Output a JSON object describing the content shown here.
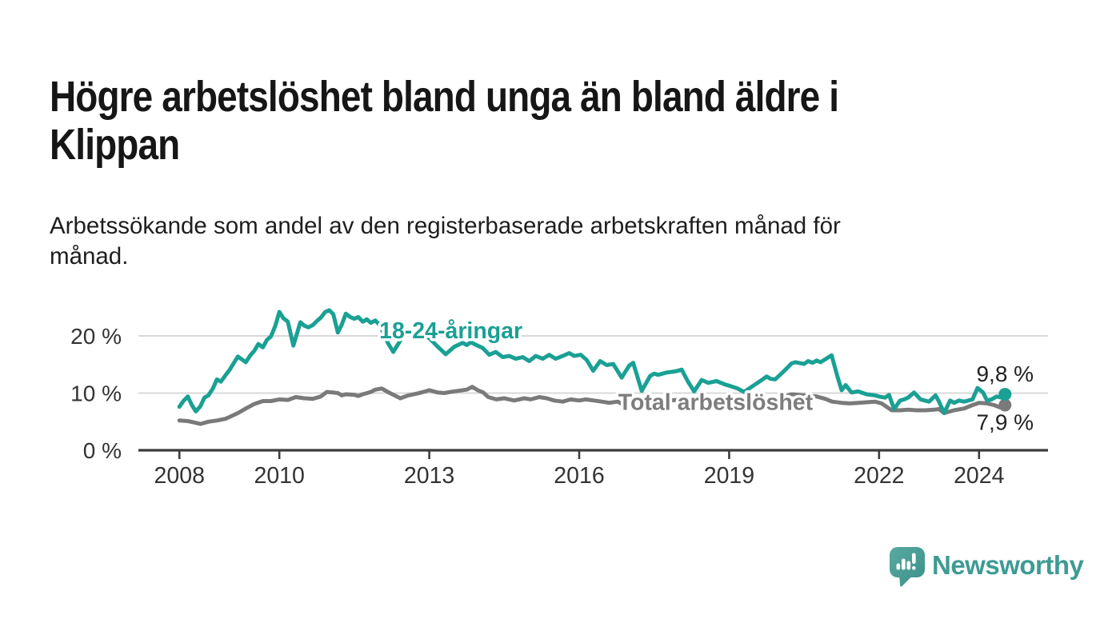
{
  "header": {
    "title": "Högre arbetslöshet bland unga än bland äldre i\nKlippan",
    "subtitle": "Arbetssökande som andel av den registerbaserade arbetskraften månad för\nmånad."
  },
  "chart_data": {
    "type": "line",
    "unit": "%",
    "xlim": [
      2007.18,
      2025.38
    ],
    "ylim": [
      0,
      29.8
    ],
    "grid": "horizontal",
    "legend_position": "inline-labels",
    "colors": {
      "youth_line": "#1aa094",
      "total_line": "#7a7a7a",
      "total_label": "#7d7d7d",
      "axis": "#3c3c3c",
      "gridline": "#d9d9d9",
      "tick_text": "#333333",
      "value_text": "#222222"
    },
    "y_ticks": [
      {
        "v": 0,
        "label": "0 %"
      },
      {
        "v": 10,
        "label": "10 %"
      },
      {
        "v": 20,
        "label": "20 %"
      }
    ],
    "x_ticks": [
      {
        "v": 2008,
        "label": "2008"
      },
      {
        "v": 2010,
        "label": "2010"
      },
      {
        "v": 2013,
        "label": "2013"
      },
      {
        "v": 2016,
        "label": "2016"
      },
      {
        "v": 2019,
        "label": "2019"
      },
      {
        "v": 2022,
        "label": "2022"
      },
      {
        "v": 2024,
        "label": "2024"
      }
    ],
    "series": [
      {
        "name": "Total arbetslöshet",
        "slug": "total",
        "color": "#7a7a7a",
        "end_dot": true,
        "end_value_label": {
          "text": "7,9 %",
          "side": "below"
        },
        "inline_label": {
          "text": "Total arbetslöshet",
          "x": 2016.78,
          "y": 7.05,
          "color": "#7d7d7d"
        },
        "points": [
          [
            2008.0,
            5.2
          ],
          [
            2008.17,
            5.1
          ],
          [
            2008.33,
            4.8
          ],
          [
            2008.42,
            4.6
          ],
          [
            2008.58,
            5.0
          ],
          [
            2008.75,
            5.2
          ],
          [
            2008.92,
            5.5
          ],
          [
            2009.0,
            5.8
          ],
          [
            2009.17,
            6.5
          ],
          [
            2009.33,
            7.3
          ],
          [
            2009.5,
            8.1
          ],
          [
            2009.67,
            8.6
          ],
          [
            2009.83,
            8.6
          ],
          [
            2010.0,
            8.9
          ],
          [
            2010.17,
            8.8
          ],
          [
            2010.33,
            9.3
          ],
          [
            2010.5,
            9.1
          ],
          [
            2010.67,
            9.0
          ],
          [
            2010.83,
            9.4
          ],
          [
            2010.95,
            10.2
          ],
          [
            2011.08,
            10.1
          ],
          [
            2011.17,
            10.0
          ],
          [
            2011.25,
            9.6
          ],
          [
            2011.33,
            9.8
          ],
          [
            2011.5,
            9.7
          ],
          [
            2011.58,
            9.5
          ],
          [
            2011.67,
            9.8
          ],
          [
            2011.83,
            10.2
          ],
          [
            2011.92,
            10.6
          ],
          [
            2012.05,
            10.8
          ],
          [
            2012.17,
            10.2
          ],
          [
            2012.33,
            9.5
          ],
          [
            2012.42,
            9.1
          ],
          [
            2012.58,
            9.6
          ],
          [
            2012.75,
            9.9
          ],
          [
            2012.92,
            10.3
          ],
          [
            2013.0,
            10.5
          ],
          [
            2013.17,
            10.1
          ],
          [
            2013.3,
            10.0
          ],
          [
            2013.42,
            10.2
          ],
          [
            2013.58,
            10.4
          ],
          [
            2013.75,
            10.6
          ],
          [
            2013.86,
            11.1
          ],
          [
            2013.97,
            10.5
          ],
          [
            2014.08,
            10.1
          ],
          [
            2014.18,
            9.3
          ],
          [
            2014.34,
            8.9
          ],
          [
            2014.5,
            9.1
          ],
          [
            2014.7,
            8.7
          ],
          [
            2014.9,
            9.1
          ],
          [
            2015.03,
            8.9
          ],
          [
            2015.2,
            9.3
          ],
          [
            2015.35,
            9.1
          ],
          [
            2015.5,
            8.7
          ],
          [
            2015.67,
            8.5
          ],
          [
            2015.83,
            8.9
          ],
          [
            2016.0,
            8.7
          ],
          [
            2016.13,
            8.9
          ],
          [
            2016.3,
            8.7
          ],
          [
            2016.45,
            8.5
          ],
          [
            2016.6,
            8.3
          ],
          [
            2016.77,
            8.5
          ],
          [
            2016.92,
            7.8
          ],
          [
            2017.08,
            8.2
          ],
          [
            2017.25,
            8.4
          ],
          [
            2017.42,
            8.6
          ],
          [
            2017.58,
            8.8
          ],
          [
            2017.75,
            8.7
          ],
          [
            2017.97,
            8.8
          ],
          [
            2018.17,
            8.6
          ],
          [
            2018.33,
            8.4
          ],
          [
            2018.5,
            8.5
          ],
          [
            2018.67,
            8.7
          ],
          [
            2018.83,
            8.6
          ],
          [
            2019.0,
            8.8
          ],
          [
            2019.17,
            8.3
          ],
          [
            2019.3,
            7.8
          ],
          [
            2019.5,
            8.4
          ],
          [
            2019.67,
            8.7
          ],
          [
            2019.83,
            8.9
          ],
          [
            2020.0,
            9.1
          ],
          [
            2020.25,
            9.8
          ],
          [
            2020.5,
            9.6
          ],
          [
            2020.75,
            9.4
          ],
          [
            2020.92,
            9.0
          ],
          [
            2021.06,
            8.5
          ],
          [
            2021.25,
            8.3
          ],
          [
            2021.42,
            8.2
          ],
          [
            2021.58,
            8.3
          ],
          [
            2021.75,
            8.4
          ],
          [
            2021.92,
            8.5
          ],
          [
            2022.05,
            8.2
          ],
          [
            2022.25,
            7.0
          ],
          [
            2022.42,
            7.0
          ],
          [
            2022.58,
            7.1
          ],
          [
            2022.75,
            7.0
          ],
          [
            2022.92,
            7.0
          ],
          [
            2023.1,
            7.1
          ],
          [
            2023.2,
            7.2
          ],
          [
            2023.3,
            6.5
          ],
          [
            2023.5,
            7.0
          ],
          [
            2023.7,
            7.3
          ],
          [
            2023.87,
            7.9
          ],
          [
            2024.0,
            8.3
          ],
          [
            2024.16,
            8.2
          ],
          [
            2024.3,
            7.9
          ],
          [
            2024.42,
            7.5
          ],
          [
            2024.52,
            7.9
          ]
        ]
      },
      {
        "name": "18-24-åringar",
        "slug": "youth",
        "color": "#1aa094",
        "end_dot": true,
        "end_value_label": {
          "text": "9,8 %",
          "side": "above"
        },
        "inline_label": {
          "text": "18-24-åringar",
          "x": 2012.0,
          "y": 19.6,
          "color": "#1aa094"
        },
        "points": [
          [
            2008.0,
            7.6
          ],
          [
            2008.08,
            8.6
          ],
          [
            2008.17,
            9.4
          ],
          [
            2008.25,
            7.9
          ],
          [
            2008.33,
            6.8
          ],
          [
            2008.42,
            7.7
          ],
          [
            2008.5,
            9.2
          ],
          [
            2008.58,
            9.6
          ],
          [
            2008.67,
            10.8
          ],
          [
            2008.75,
            12.4
          ],
          [
            2008.83,
            12.0
          ],
          [
            2008.92,
            13.1
          ],
          [
            2009.0,
            14.0
          ],
          [
            2009.17,
            16.4
          ],
          [
            2009.25,
            15.9
          ],
          [
            2009.33,
            15.4
          ],
          [
            2009.42,
            16.6
          ],
          [
            2009.5,
            17.4
          ],
          [
            2009.58,
            18.6
          ],
          [
            2009.67,
            18.0
          ],
          [
            2009.75,
            19.3
          ],
          [
            2009.83,
            19.9
          ],
          [
            2009.92,
            21.8
          ],
          [
            2010.0,
            24.2
          ],
          [
            2010.08,
            23.1
          ],
          [
            2010.17,
            22.5
          ],
          [
            2010.28,
            18.3
          ],
          [
            2010.42,
            22.4
          ],
          [
            2010.5,
            21.8
          ],
          [
            2010.58,
            21.5
          ],
          [
            2010.67,
            21.9
          ],
          [
            2010.75,
            22.6
          ],
          [
            2010.83,
            23.2
          ],
          [
            2010.92,
            24.2
          ],
          [
            2011.0,
            24.5
          ],
          [
            2011.08,
            23.8
          ],
          [
            2011.17,
            20.6
          ],
          [
            2011.25,
            22.0
          ],
          [
            2011.33,
            23.9
          ],
          [
            2011.42,
            23.3
          ],
          [
            2011.5,
            23.0
          ],
          [
            2011.58,
            23.3
          ],
          [
            2011.67,
            22.5
          ],
          [
            2011.75,
            22.9
          ],
          [
            2011.83,
            22.3
          ],
          [
            2011.92,
            22.7
          ],
          [
            2012.0,
            22.0
          ],
          [
            2012.08,
            20.6
          ],
          [
            2012.17,
            18.8
          ],
          [
            2012.28,
            17.2
          ],
          [
            2012.42,
            19.2
          ],
          [
            2012.5,
            20.3
          ],
          [
            2012.58,
            20.8
          ],
          [
            2012.67,
            20.4
          ],
          [
            2012.75,
            21.0
          ],
          [
            2012.83,
            20.6
          ],
          [
            2012.92,
            20.1
          ],
          [
            2013.0,
            19.6
          ],
          [
            2013.08,
            18.9
          ],
          [
            2013.17,
            18.1
          ],
          [
            2013.33,
            16.8
          ],
          [
            2013.5,
            18.1
          ],
          [
            2013.67,
            18.8
          ],
          [
            2013.75,
            18.4
          ],
          [
            2013.83,
            18.9
          ],
          [
            2013.92,
            18.5
          ],
          [
            2014.07,
            17.9
          ],
          [
            2014.2,
            16.7
          ],
          [
            2014.33,
            17.2
          ],
          [
            2014.47,
            16.3
          ],
          [
            2014.6,
            16.5
          ],
          [
            2014.73,
            16.0
          ],
          [
            2014.87,
            16.3
          ],
          [
            2015.0,
            15.6
          ],
          [
            2015.13,
            16.5
          ],
          [
            2015.27,
            16.0
          ],
          [
            2015.4,
            16.7
          ],
          [
            2015.53,
            16.0
          ],
          [
            2015.67,
            16.5
          ],
          [
            2015.8,
            17.0
          ],
          [
            2015.9,
            16.5
          ],
          [
            2016.03,
            16.7
          ],
          [
            2016.15,
            15.8
          ],
          [
            2016.28,
            13.9
          ],
          [
            2016.42,
            15.6
          ],
          [
            2016.55,
            14.9
          ],
          [
            2016.68,
            15.1
          ],
          [
            2016.85,
            12.7
          ],
          [
            2017.0,
            14.8
          ],
          [
            2017.08,
            15.3
          ],
          [
            2017.25,
            10.4
          ],
          [
            2017.42,
            13.0
          ],
          [
            2017.5,
            13.4
          ],
          [
            2017.58,
            13.2
          ],
          [
            2017.75,
            13.6
          ],
          [
            2017.92,
            13.8
          ],
          [
            2018.05,
            14.1
          ],
          [
            2018.17,
            12.1
          ],
          [
            2018.3,
            10.3
          ],
          [
            2018.45,
            12.3
          ],
          [
            2018.58,
            11.8
          ],
          [
            2018.75,
            12.1
          ],
          [
            2018.92,
            11.5
          ],
          [
            2019.0,
            11.3
          ],
          [
            2019.17,
            10.8
          ],
          [
            2019.3,
            10.2
          ],
          [
            2019.5,
            11.4
          ],
          [
            2019.67,
            12.4
          ],
          [
            2019.75,
            12.9
          ],
          [
            2019.83,
            12.5
          ],
          [
            2019.92,
            12.4
          ],
          [
            2020.08,
            13.7
          ],
          [
            2020.25,
            15.2
          ],
          [
            2020.33,
            15.4
          ],
          [
            2020.5,
            15.1
          ],
          [
            2020.58,
            15.6
          ],
          [
            2020.67,
            15.3
          ],
          [
            2020.75,
            15.7
          ],
          [
            2020.83,
            15.4
          ],
          [
            2020.92,
            15.9
          ],
          [
            2021.05,
            16.6
          ],
          [
            2021.17,
            12.8
          ],
          [
            2021.25,
            10.5
          ],
          [
            2021.33,
            11.4
          ],
          [
            2021.45,
            10.1
          ],
          [
            2021.58,
            10.3
          ],
          [
            2021.75,
            9.8
          ],
          [
            2021.92,
            9.6
          ],
          [
            2022.0,
            9.4
          ],
          [
            2022.12,
            9.2
          ],
          [
            2022.2,
            9.7
          ],
          [
            2022.3,
            7.2
          ],
          [
            2022.42,
            8.7
          ],
          [
            2022.5,
            8.9
          ],
          [
            2022.58,
            9.2
          ],
          [
            2022.7,
            10.1
          ],
          [
            2022.83,
            8.9
          ],
          [
            2023.0,
            8.5
          ],
          [
            2023.13,
            9.6
          ],
          [
            2023.2,
            8.5
          ],
          [
            2023.3,
            6.5
          ],
          [
            2023.42,
            8.7
          ],
          [
            2023.5,
            8.3
          ],
          [
            2023.6,
            8.7
          ],
          [
            2023.7,
            8.5
          ],
          [
            2023.87,
            8.9
          ],
          [
            2023.97,
            10.9
          ],
          [
            2024.08,
            10.1
          ],
          [
            2024.16,
            8.7
          ],
          [
            2024.25,
            8.9
          ],
          [
            2024.35,
            9.4
          ],
          [
            2024.45,
            9.2
          ],
          [
            2024.52,
            9.8
          ]
        ]
      }
    ]
  },
  "footer": {
    "brand": "Newsworthy",
    "brand_color": "#3d9b94"
  }
}
